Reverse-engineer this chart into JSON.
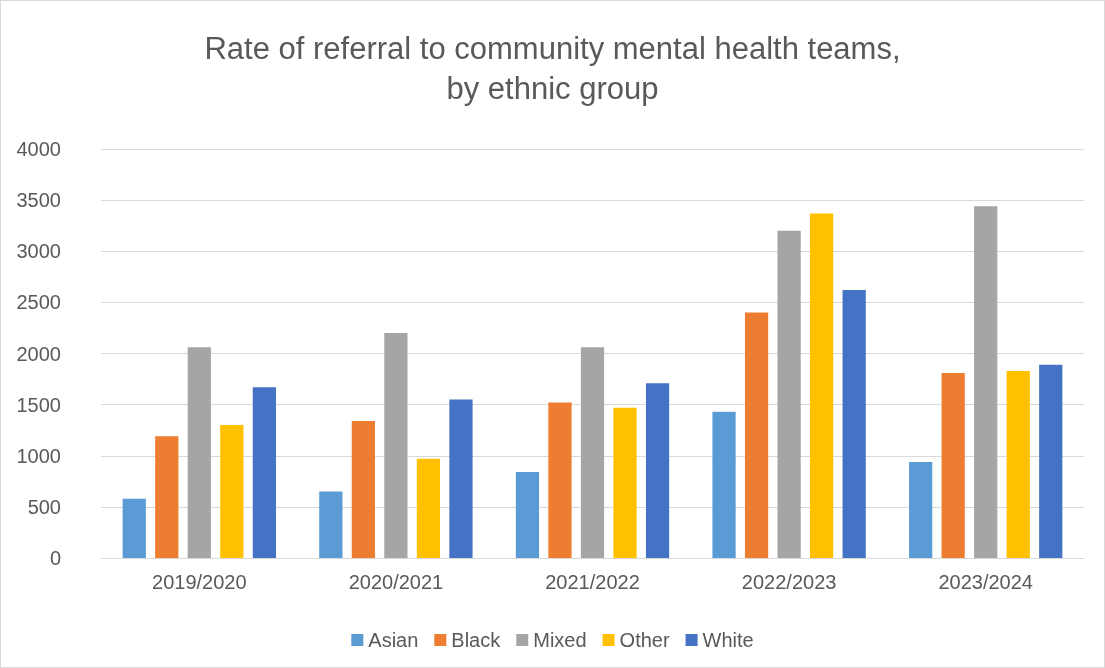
{
  "chart_data": {
    "type": "bar",
    "title": "Rate of referral to community mental health teams,\nby ethnic group",
    "categories": [
      "2019/2020",
      "2020/2021",
      "2021/2022",
      "2022/2023",
      "2023/2024"
    ],
    "series": [
      {
        "name": "Asian",
        "color": "#5b9bd5",
        "values": [
          580,
          650,
          840,
          1430,
          940
        ]
      },
      {
        "name": "Black",
        "color": "#ed7d31",
        "values": [
          1190,
          1340,
          1520,
          2400,
          1810
        ]
      },
      {
        "name": "Mixed",
        "color": "#a5a5a5",
        "values": [
          2060,
          2200,
          2060,
          3200,
          3440
        ]
      },
      {
        "name": "Other",
        "color": "#ffc000",
        "values": [
          1300,
          970,
          1470,
          3370,
          1830
        ]
      },
      {
        "name": "White",
        "color": "#4472c4",
        "values": [
          1670,
          1550,
          1710,
          2620,
          1890
        ]
      }
    ],
    "ylim": [
      0,
      4000
    ],
    "yticks": [
      0,
      500,
      1000,
      1500,
      2000,
      2500,
      3000,
      3500,
      4000
    ],
    "grid": "y",
    "legend": "bottom"
  }
}
